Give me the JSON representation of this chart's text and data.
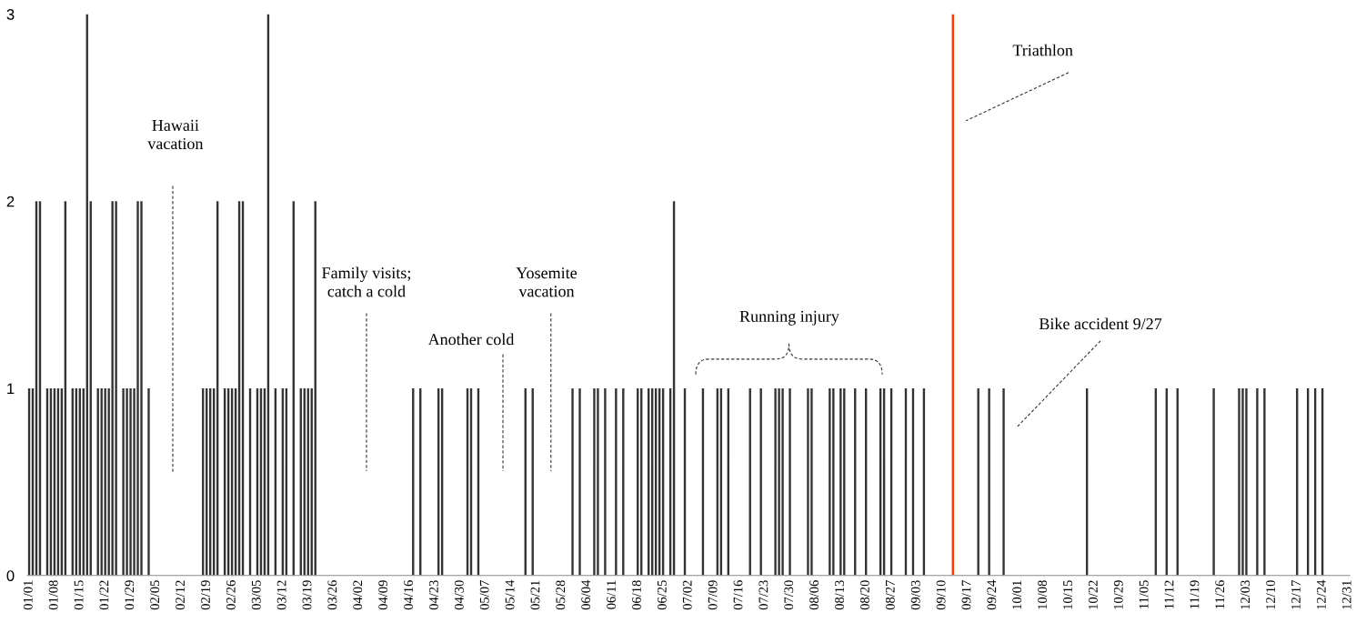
{
  "chart_data": {
    "type": "bar",
    "categories": [
      "01/01",
      null,
      null,
      null,
      null,
      null,
      null,
      "01/08",
      null,
      null,
      null,
      null,
      null,
      null,
      "01/15",
      null,
      null,
      null,
      null,
      null,
      null,
      "01/22",
      null,
      null,
      null,
      null,
      null,
      null,
      "01/29",
      null,
      null,
      null,
      null,
      null,
      null,
      "02/05",
      null,
      null,
      null,
      null,
      null,
      null,
      "02/12",
      null,
      null,
      null,
      null,
      null,
      null,
      "02/19",
      null,
      null,
      null,
      null,
      null,
      null,
      "02/26",
      null,
      null,
      null,
      null,
      null,
      null,
      "03/05",
      null,
      null,
      null,
      null,
      null,
      null,
      "03/12",
      null,
      null,
      null,
      null,
      null,
      null,
      "03/19",
      null,
      null,
      null,
      null,
      null,
      null,
      "03/26",
      null,
      null,
      null,
      null,
      null,
      null,
      "04/02",
      null,
      null,
      null,
      null,
      null,
      null,
      "04/09",
      null,
      null,
      null,
      null,
      null,
      null,
      "04/16",
      null,
      null,
      null,
      null,
      null,
      null,
      "04/23",
      null,
      null,
      null,
      null,
      null,
      null,
      "04/30",
      null,
      null,
      null,
      null,
      null,
      null,
      "05/07",
      null,
      null,
      null,
      null,
      null,
      null,
      "05/14",
      null,
      null,
      null,
      null,
      null,
      null,
      "05/21",
      null,
      null,
      null,
      null,
      null,
      null,
      "05/28",
      null,
      null,
      null,
      null,
      null,
      null,
      "06/04",
      null,
      null,
      null,
      null,
      null,
      null,
      "06/11",
      null,
      null,
      null,
      null,
      null,
      null,
      "06/18",
      null,
      null,
      null,
      null,
      null,
      null,
      "06/25",
      null,
      null,
      null,
      null,
      null,
      null,
      "07/02",
      null,
      null,
      null,
      null,
      null,
      null,
      "07/09",
      null,
      null,
      null,
      null,
      null,
      null,
      "07/16",
      null,
      null,
      null,
      null,
      null,
      null,
      "07/23",
      null,
      null,
      null,
      null,
      null,
      null,
      "07/30",
      null,
      null,
      null,
      null,
      null,
      null,
      "08/06",
      null,
      null,
      null,
      null,
      null,
      null,
      "08/13",
      null,
      null,
      null,
      null,
      null,
      null,
      "08/20",
      null,
      null,
      null,
      null,
      null,
      null,
      "08/27",
      null,
      null,
      null,
      null,
      null,
      null,
      "09/03",
      null,
      null,
      null,
      null,
      null,
      null,
      "09/10",
      null,
      null,
      null,
      null,
      null,
      null,
      "09/17",
      null,
      null,
      null,
      null,
      null,
      null,
      "09/24",
      null,
      null,
      null,
      null,
      null,
      null,
      "10/01",
      null,
      null,
      null,
      null,
      null,
      null,
      "10/08",
      null,
      null,
      null,
      null,
      null,
      null,
      "10/15",
      null,
      null,
      null,
      null,
      null,
      null,
      "10/22",
      null,
      null,
      null,
      null,
      null,
      null,
      "10/29",
      null,
      null,
      null,
      null,
      null,
      null,
      "11/05",
      null,
      null,
      null,
      null,
      null,
      null,
      "11/12",
      null,
      null,
      null,
      null,
      null,
      null,
      "11/19",
      null,
      null,
      null,
      null,
      null,
      null,
      "11/26",
      null,
      null,
      null,
      null,
      null,
      null,
      "12/03",
      null,
      null,
      null,
      null,
      null,
      null,
      "12/10",
      null,
      null,
      null,
      null,
      null,
      null,
      "12/17",
      null,
      null,
      null,
      null,
      null,
      null,
      "12/24",
      null,
      null,
      null,
      null,
      null,
      null,
      "12/31"
    ],
    "values": [
      1,
      1,
      2,
      2,
      0,
      1,
      1,
      1,
      1,
      1,
      2,
      0,
      1,
      1,
      1,
      1,
      3,
      2,
      0,
      1,
      1,
      1,
      1,
      2,
      2,
      0,
      1,
      1,
      1,
      1,
      2,
      2,
      0,
      1,
      0,
      0,
      0,
      0,
      0,
      0,
      0,
      0,
      0,
      0,
      0,
      0,
      0,
      0,
      1,
      1,
      1,
      1,
      2,
      0,
      1,
      1,
      1,
      1,
      2,
      2,
      0,
      1,
      0,
      1,
      1,
      1,
      3,
      0,
      1,
      0,
      1,
      1,
      0,
      2,
      0,
      1,
      1,
      1,
      1,
      2,
      0,
      0,
      0,
      0,
      0,
      0,
      0,
      0,
      0,
      0,
      0,
      0,
      0,
      0,
      0,
      0,
      0,
      0,
      0,
      0,
      0,
      0,
      0,
      0,
      0,
      0,
      1,
      0,
      1,
      0,
      0,
      0,
      0,
      1,
      1,
      0,
      0,
      0,
      0,
      0,
      0,
      1,
      1,
      0,
      1,
      0,
      0,
      0,
      0,
      0,
      0,
      0,
      0,
      0,
      0,
      0,
      0,
      1,
      0,
      1,
      0,
      0,
      0,
      0,
      0,
      0,
      0,
      0,
      0,
      0,
      1,
      0,
      1,
      0,
      0,
      0,
      1,
      1,
      0,
      1,
      0,
      0,
      1,
      0,
      1,
      0,
      0,
      0,
      1,
      1,
      0,
      1,
      1,
      1,
      1,
      1,
      0,
      1,
      2,
      0,
      0,
      1,
      0,
      0,
      0,
      0,
      1,
      0,
      0,
      0,
      1,
      1,
      0,
      1,
      0,
      0,
      0,
      0,
      0,
      1,
      0,
      0,
      1,
      0,
      0,
      0,
      1,
      1,
      1,
      0,
      1,
      0,
      0,
      0,
      0,
      1,
      1,
      0,
      0,
      0,
      0,
      1,
      1,
      0,
      1,
      1,
      0,
      0,
      1,
      0,
      0,
      1,
      0,
      0,
      0,
      1,
      1,
      0,
      1,
      0,
      0,
      0,
      1,
      0,
      1,
      0,
      0,
      1,
      0,
      0,
      0,
      0,
      0,
      0,
      0,
      3,
      0,
      0,
      0,
      0,
      0,
      0,
      1,
      0,
      0,
      1,
      0,
      0,
      0,
      1,
      0,
      0,
      0,
      0,
      0,
      0,
      0,
      0,
      0,
      0,
      0,
      0,
      0,
      0,
      0,
      0,
      0,
      0,
      0,
      0,
      0,
      0,
      1,
      0,
      0,
      0,
      0,
      0,
      0,
      0,
      0,
      0,
      0,
      0,
      0,
      0,
      0,
      0,
      0,
      0,
      0,
      1,
      0,
      0,
      1,
      0,
      0,
      1,
      0,
      0,
      0,
      0,
      0,
      0,
      0,
      0,
      0,
      1,
      0,
      0,
      0,
      0,
      0,
      0,
      1,
      1,
      1,
      0,
      0,
      1,
      0,
      1,
      0,
      0,
      0,
      0,
      0,
      0,
      0,
      0,
      1,
      0,
      0,
      1,
      0,
      1,
      0,
      1,
      0,
      0,
      0,
      0,
      0,
      0,
      0
    ],
    "colors": [
      "#333333",
      "#333333",
      "#333333",
      "#333333",
      "#333333",
      "#333333",
      "#333333",
      "#333333",
      "#333333",
      "#333333",
      "#333333",
      "#333333",
      "#333333",
      "#333333",
      "#333333",
      "#333333",
      "#333333",
      "#333333",
      "#333333",
      "#333333",
      "#333333",
      "#333333",
      "#333333",
      "#333333",
      "#333333",
      "#333333",
      "#333333",
      "#333333",
      "#333333",
      "#333333",
      "#333333",
      "#333333",
      "#333333",
      "#333333",
      "#333333",
      "#333333",
      "#333333",
      "#333333",
      "#333333",
      "#333333",
      "#333333",
      "#333333",
      "#333333",
      "#333333",
      "#333333",
      "#333333",
      "#333333",
      "#333333",
      "#333333",
      "#333333",
      "#333333",
      "#333333",
      "#333333",
      "#333333",
      "#333333",
      "#333333",
      "#333333",
      "#333333",
      "#333333",
      "#333333",
      "#333333",
      "#333333",
      "#333333",
      "#333333",
      "#333333",
      "#333333",
      "#333333",
      "#333333",
      "#333333",
      "#333333",
      "#333333",
      "#333333",
      "#333333",
      "#333333",
      "#333333",
      "#333333",
      "#333333",
      "#333333",
      "#333333",
      "#333333",
      "#333333",
      "#333333",
      "#333333",
      "#333333",
      "#333333",
      "#333333",
      "#333333",
      "#333333",
      "#333333",
      "#333333",
      "#333333",
      "#333333",
      "#333333",
      "#333333",
      "#333333",
      "#333333",
      "#333333",
      "#333333",
      "#333333",
      "#333333",
      "#333333",
      "#333333",
      "#333333",
      "#333333",
      "#333333",
      "#333333",
      "#333333",
      "#333333",
      "#333333",
      "#333333",
      "#333333",
      "#333333",
      "#333333",
      "#333333",
      "#333333",
      "#333333",
      "#333333",
      "#333333",
      "#333333",
      "#333333",
      "#333333",
      "#333333",
      "#333333",
      "#333333",
      "#333333",
      "#333333",
      "#333333",
      "#333333",
      "#333333",
      "#333333",
      "#333333",
      "#333333",
      "#333333",
      "#333333",
      "#333333",
      "#333333",
      "#333333",
      "#333333",
      "#333333",
      "#333333",
      "#333333",
      "#333333",
      "#333333",
      "#333333",
      "#333333",
      "#333333",
      "#333333",
      "#333333",
      "#333333",
      "#333333",
      "#333333",
      "#333333",
      "#333333",
      "#333333",
      "#333333",
      "#333333",
      "#333333",
      "#333333",
      "#333333",
      "#333333",
      "#333333",
      "#333333",
      "#333333",
      "#333333",
      "#333333",
      "#333333",
      "#333333",
      "#333333",
      "#333333",
      "#333333",
      "#333333",
      "#333333",
      "#333333",
      "#333333",
      "#333333",
      "#333333",
      "#333333",
      "#333333",
      "#333333",
      "#333333",
      "#333333",
      "#333333",
      "#333333",
      "#333333",
      "#333333",
      "#333333",
      "#333333",
      "#333333",
      "#333333",
      "#333333",
      "#333333",
      "#333333",
      "#333333",
      "#333333",
      "#333333",
      "#333333",
      "#333333",
      "#333333",
      "#333333",
      "#333333",
      "#333333",
      "#333333",
      "#333333",
      "#333333",
      "#333333",
      "#333333",
      "#333333",
      "#333333",
      "#333333",
      "#333333",
      "#333333",
      "#333333",
      "#333333",
      "#333333",
      "#333333",
      "#333333",
      "#333333",
      "#333333",
      "#333333",
      "#333333",
      "#333333",
      "#333333",
      "#333333",
      "#333333",
      "#333333",
      "#333333",
      "#333333",
      "#333333",
      "#333333",
      "#333333",
      "#333333",
      "#333333",
      "#333333",
      "#333333",
      "#333333",
      "#333333",
      "#333333",
      "#333333",
      "#333333",
      "#333333",
      "#333333",
      "#333333",
      "#333333",
      "#333333",
      "#333333",
      "#333333",
      "#333333",
      "#333333",
      "#333333",
      "#333333",
      "#333333",
      "#333333",
      "#333333",
      "#333333",
      "#333333",
      "#ff3300",
      "#333333",
      "#333333",
      "#333333",
      "#333333",
      "#333333",
      "#333333",
      "#333333",
      "#333333",
      "#333333",
      "#333333",
      "#333333",
      "#333333",
      "#333333",
      "#333333",
      "#333333",
      "#333333",
      "#333333",
      "#333333",
      "#333333",
      "#333333",
      "#333333",
      "#333333",
      "#333333",
      "#333333",
      "#333333",
      "#333333",
      "#333333",
      "#333333",
      "#333333",
      "#333333",
      "#333333",
      "#333333",
      "#333333",
      "#333333",
      "#333333",
      "#333333",
      "#333333",
      "#333333",
      "#333333",
      "#333333",
      "#333333",
      "#333333",
      "#333333",
      "#333333",
      "#333333",
      "#333333",
      "#333333",
      "#333333",
      "#333333",
      "#333333",
      "#333333",
      "#333333",
      "#333333",
      "#333333",
      "#333333",
      "#333333",
      "#333333",
      "#333333",
      "#333333",
      "#333333",
      "#333333",
      "#333333",
      "#333333",
      "#333333",
      "#333333",
      "#333333",
      "#333333",
      "#333333",
      "#333333",
      "#333333",
      "#333333",
      "#333333",
      "#333333",
      "#333333",
      "#333333",
      "#333333",
      "#333333",
      "#333333",
      "#333333",
      "#333333",
      "#333333",
      "#333333",
      "#333333",
      "#333333",
      "#333333",
      "#333333",
      "#333333",
      "#333333",
      "#333333",
      "#333333",
      "#333333",
      "#333333",
      "#333333",
      "#333333",
      "#333333",
      "#333333",
      "#333333",
      "#333333",
      "#333333",
      "#333333",
      "#333333",
      "#333333",
      "#333333",
      "#333333",
      "#333333",
      "#333333",
      "#333333",
      "#333333",
      "#333333"
    ],
    "ylim": [
      0,
      3
    ],
    "yticks": [
      0,
      1,
      2,
      3
    ],
    "grid": false,
    "legend": false,
    "annotations": [
      "Hawaii\nvacation",
      "Family visits;\ncatch a cold",
      "Another cold",
      "Yosemite\nvacation",
      "Running injury",
      "Triathlon",
      "Bike accident 9/27"
    ]
  }
}
